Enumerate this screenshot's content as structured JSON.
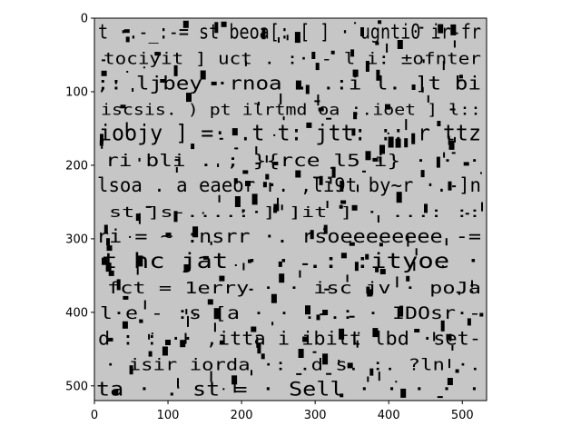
{
  "figure": {
    "background": "#ffffff",
    "image_background": "#c6c6c6",
    "ink_color": "#000000",
    "x_ticks": [
      "0",
      "100",
      "200",
      "300",
      "400",
      "500"
    ],
    "y_ticks": [
      "0",
      "100",
      "200",
      "300",
      "400",
      "500"
    ],
    "x_range": [
      0,
      533
    ],
    "y_range": [
      0,
      520
    ],
    "y_axis_inverted": true
  },
  "noise_text_rows": [
    "t  ·.-_:-=  st beoa[: [ ]  ·  ugnti0 ir-fr",
    "tociyit ]  uct  .  :·   - l  i: ±ofnter",
    "   ;:  ljbey  ·rnoa  .  .:i   l.  ]t  bi",
    "iscsis. )  pt  ilrtmd oa :.ioet  ]  l::",
    "ioojy   ] =·    .t  t:  jtt:   ::   r ttz",
    "ri bli .  ; }{rce  l5  i} ·  ·  ·",
    "lsoa .  a eaeor  ·. ,li9t by~r  ·.  ]n",
    "    st  ]s-....:·]  ]it  ]  ·     ...:  ::",
    "ri      = ~ :nsrr  ·. rsoeeeeeeee -=",
    "t  hc  jat  ·  ·  .: :ityoe  ·",
    "  fct  =  1erry  ·  ·  isc jv  ·  poJa",
    "l·e  -  :s  [a  ·  ·  .  .:  ·  IDOsr·-",
    "d  :  :  ·· ,itta   i  ibitt  lbd  ·set-",
    "·  isir  iorda  ·: .d  s.  :.  ?ln  ·.",
    "ta  ·  .  st  =  ·  Sell  ·  ·  ·  ·  ·"
  ]
}
